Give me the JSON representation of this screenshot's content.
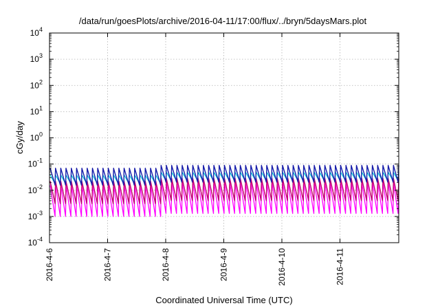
{
  "chart_data": {
    "type": "line",
    "title": "/data/run/goesPlots/archive/2016-04-11/17:00/flux/../bryn/5daysMars.plot",
    "xlabel": "Coordinated Universal Time (UTC)",
    "ylabel": "cGy/day",
    "yscale": "log",
    "ylim": [
      0.0001,
      10000
    ],
    "xlim": [
      "2016-04-06 00:00",
      "2016-04-11 23:00"
    ],
    "grid": true,
    "x_ticks": [
      "2016-4-6",
      "2016-4-7",
      "2016-4-8",
      "2016-4-9",
      "2016-4-10",
      "2016-4-11"
    ],
    "y_ticks": [
      {
        "base": "10",
        "exp": "-4"
      },
      {
        "base": "10",
        "exp": "-3"
      },
      {
        "base": "10",
        "exp": "-2"
      },
      {
        "base": "10",
        "exp": "-1"
      },
      {
        "base": "10",
        "exp": "0"
      },
      {
        "base": "10",
        "exp": "1"
      },
      {
        "base": "10",
        "exp": "2"
      },
      {
        "base": "10",
        "exp": "3"
      },
      {
        "base": "10",
        "exp": "4"
      }
    ],
    "pattern": {
      "description_of_values": "periodic sawtooth, approx. 11 cycles per day",
      "cycles_per_day": 11,
      "segments": [
        {
          "from": "2016-4-6",
          "to": "2016-4-7 21:00",
          "peak_max": 0.07,
          "trough_min": 0.001
        },
        {
          "from": "2016-4-7 21:00",
          "to": "2016-4-12",
          "peak_max": 0.09,
          "trough_min": 0.0013
        }
      ]
    },
    "series": [
      {
        "color": "#1a1aa6",
        "peak_factor": 1.0,
        "trough_factor": 0.28
      },
      {
        "color": "#2a8cf0",
        "peak_factor": 0.95,
        "trough_factor": 0.3
      },
      {
        "color": "#00c8d8",
        "peak_factor": 0.55,
        "trough_factor": 0.32
      },
      {
        "color": "#c0007a",
        "peak_factor": 0.32,
        "trough_factor": 0.055
      },
      {
        "color": "#e03030",
        "peak_factor": 0.3,
        "trough_factor": 0.06
      },
      {
        "color": "#ff00ff",
        "peak_factor": 0.22,
        "trough_factor": 0.018
      }
    ]
  },
  "colors": {
    "grid": "#b0b0b0",
    "axis": "#000000"
  }
}
